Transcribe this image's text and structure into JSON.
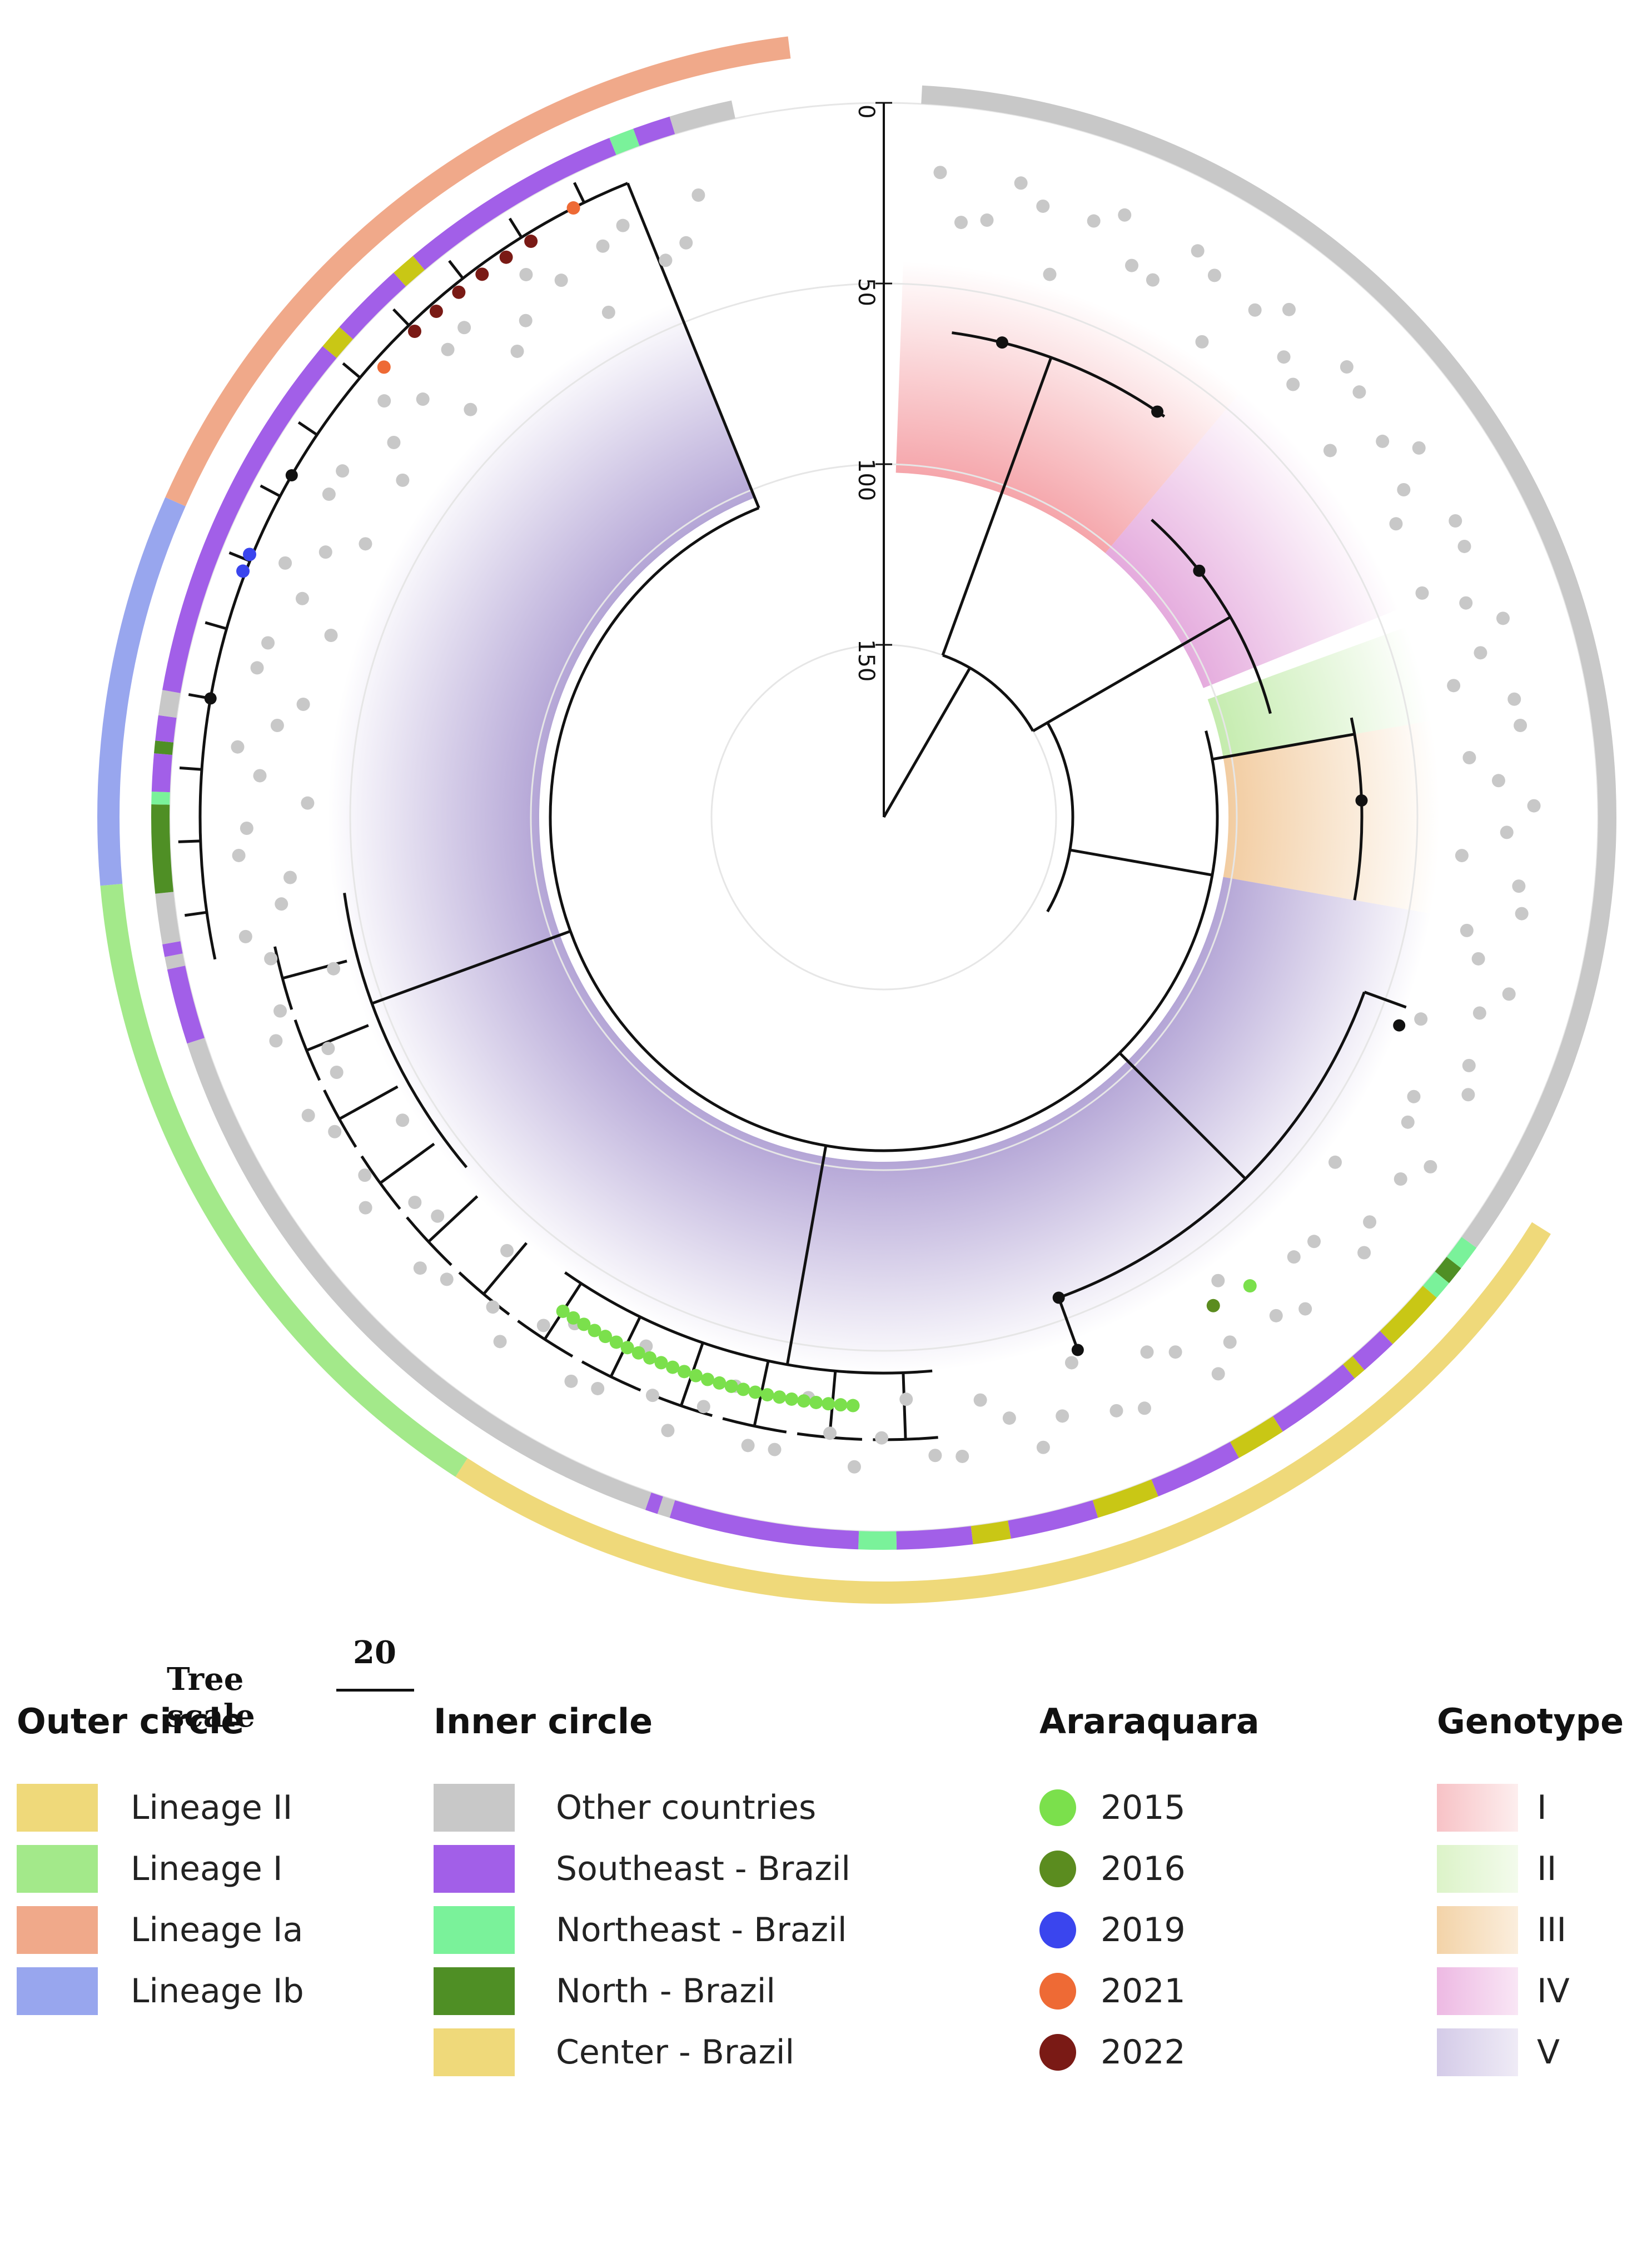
{
  "figure": {
    "tree_scale_label": "Tree scale",
    "tree_scale_value": "20",
    "radial_axis_ticks": [
      "0",
      "50",
      "100",
      "150"
    ]
  },
  "legends": {
    "outer": {
      "title": "Outer circle",
      "items": [
        {
          "label": "Lineage II",
          "color": "#efd97a"
        },
        {
          "label": "Lineage I",
          "color": "#a3e98a"
        },
        {
          "label": "Lineage Ia",
          "color": "#f0a98a"
        },
        {
          "label": "Lineage Ib",
          "color": "#98a6ee"
        }
      ]
    },
    "inner": {
      "title": "Inner circle",
      "items": [
        {
          "label": "Other countries",
          "color": "#c8c8c8"
        },
        {
          "label": "Southeast - Brazil",
          "color": "#a25fe8"
        },
        {
          "label": "Northeast - Brazil",
          "color": "#7af29a"
        },
        {
          "label": "North - Brazil",
          "color": "#4f8f25"
        },
        {
          "label": "Center - Brazil",
          "color": "#c9c715"
        }
      ]
    },
    "araraquara": {
      "title": "Araraquara",
      "items": [
        {
          "label": "2015",
          "color": "#7be04c"
        },
        {
          "label": "2016",
          "color": "#5b8c1f"
        },
        {
          "label": "2019",
          "color": "#3a45ee"
        },
        {
          "label": "2021",
          "color": "#ee6a35"
        },
        {
          "label": "2022",
          "color": "#7a1a15"
        }
      ]
    },
    "genotype": {
      "title": "Genotype",
      "items": [
        {
          "label": "I",
          "color": "#f9cfd2"
        },
        {
          "label": "II",
          "color": "#e4f6d4"
        },
        {
          "label": "III",
          "color": "#f5dcb8"
        },
        {
          "label": "IV",
          "color": "#f1c8e8"
        },
        {
          "label": "V",
          "color": "#dcd4ec"
        }
      ]
    }
  }
}
